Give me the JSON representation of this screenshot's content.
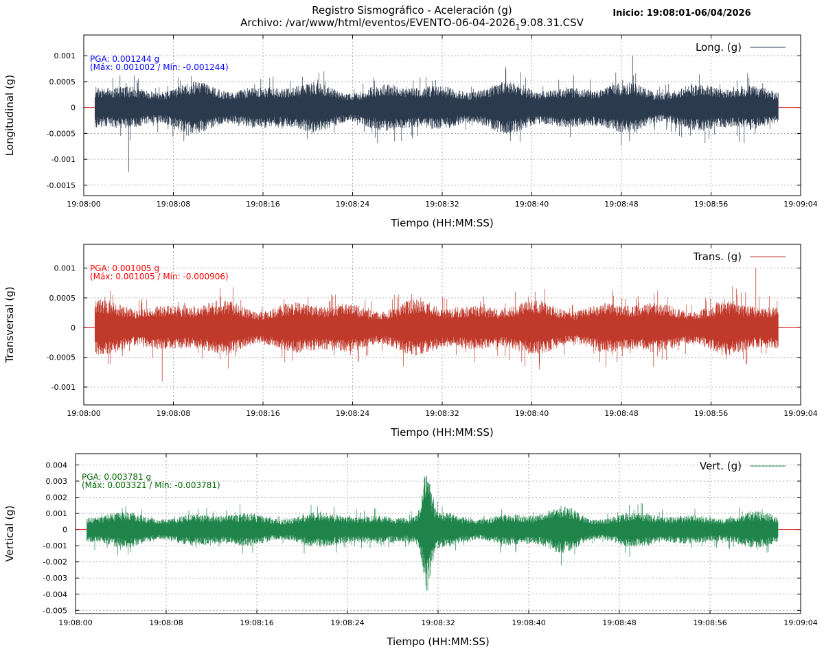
{
  "figure": {
    "title_line1": "Registro Sismográfico - Aceleración (g)",
    "title_line2_prefix": "Archivo: /var/www/html/eventos/EVENTO-06-04-2026",
    "title_line2_sub": "1",
    "title_line2_suffix": "9.08.31.CSV",
    "start_info": "Inicio: 19:08:01-06/04/2026"
  },
  "colors": {
    "long": "#2c3a4e",
    "trans": "#c0392b",
    "vert": "#1e8449",
    "zero_line": "#d62728",
    "annot_long": "#0000ff",
    "annot_trans": "#ff0000",
    "annot_vert": "#006400",
    "grid": "#9a9a9a"
  },
  "chart_data": [
    {
      "type": "line",
      "series": [
        {
          "name": "Long. (g)",
          "channel": "long"
        }
      ],
      "ylabel": "Longitudinal (g)",
      "xlabel": "Tiempo (HH:MM:SS)",
      "x_start": "19:08:00",
      "x_end": "19:09:04",
      "x_tick_labels": [
        "19:08:00",
        "19:08:08",
        "19:08:16",
        "19:08:24",
        "19:08:32",
        "19:08:40",
        "19:08:48",
        "19:08:56",
        "19:09:04"
      ],
      "data_start": "19:08:01",
      "data_end": "19:09:02",
      "ylim": [
        -0.0017,
        0.0014
      ],
      "y_ticks": [
        0.001,
        0.0005,
        0,
        -0.0005,
        -0.001,
        -0.0015
      ],
      "y_tick_labels": [
        "0.001",
        "0.0005",
        "0",
        "-0.0005",
        "-0.001",
        "-0.0015"
      ],
      "typical_amplitude": 0.0004,
      "max": 0.001002,
      "min": -0.001244,
      "max_at": "19:08:49",
      "min_at": "19:08:04",
      "grid": true,
      "legend": "top-right",
      "annot_line1": "PGA: 0.001244 g",
      "annot_line2": "(Máx: 0.001002 / Mín: -0.001244)"
    },
    {
      "type": "line",
      "series": [
        {
          "name": "Trans. (g)",
          "channel": "trans"
        }
      ],
      "ylabel": "Transversal (g)",
      "xlabel": "Tiempo (HH:MM:SS)",
      "x_start": "19:08:00",
      "x_end": "19:09:04",
      "x_tick_labels": [
        "19:08:00",
        "19:08:08",
        "19:08:16",
        "19:08:24",
        "19:08:32",
        "19:08:40",
        "19:08:48",
        "19:08:56",
        "19:09:04"
      ],
      "data_start": "19:08:01",
      "data_end": "19:09:02",
      "ylim": [
        -0.0013,
        0.0014
      ],
      "y_ticks": [
        0.001,
        0.0005,
        0,
        -0.0005,
        -0.001
      ],
      "y_tick_labels": [
        "0.001",
        "0.0005",
        "0",
        "-0.0005",
        "-0.001"
      ],
      "typical_amplitude": 0.00038,
      "max": 0.001005,
      "min": -0.000906,
      "max_at": "19:09:00",
      "min_at": "19:08:07",
      "grid": true,
      "legend": "top-right",
      "annot_line1": "PGA: 0.001005 g",
      "annot_line2": "(Máx: 0.001005 / Mín: -0.000906)"
    },
    {
      "type": "line",
      "series": [
        {
          "name": "Vert. (g)",
          "channel": "vert"
        }
      ],
      "ylabel": "Vertical (g)",
      "xlabel": "Tiempo (HH:MM:SS)",
      "x_start": "19:08:00",
      "x_end": "19:09:04",
      "x_tick_labels": [
        "19:08:00",
        "19:08:08",
        "19:08:16",
        "19:08:24",
        "19:08:32",
        "19:08:40",
        "19:08:48",
        "19:08:56",
        "19:09:04"
      ],
      "data_start": "19:08:01",
      "data_end": "19:09:02",
      "ylim": [
        -0.0052,
        0.0047
      ],
      "y_ticks": [
        0.004,
        0.003,
        0.002,
        0.001,
        0,
        -0.001,
        -0.002,
        -0.003,
        -0.004,
        -0.005
      ],
      "y_tick_labels": [
        "0.004",
        "0.003",
        "0.002",
        "0.001",
        "0",
        "-0.001",
        "-0.002",
        "-0.003",
        "-0.004",
        "-0.005"
      ],
      "typical_amplitude": 0.0009,
      "max": 0.003321,
      "min": -0.003781,
      "max_at": "19:08:31",
      "min_at": "19:08:31",
      "event_center": "19:08:31",
      "grid": true,
      "legend": "top-right",
      "annot_line1": "PGA: 0.003781 g",
      "annot_line2": "(Máx: 0.003321 / Mín: -0.003781)"
    }
  ]
}
